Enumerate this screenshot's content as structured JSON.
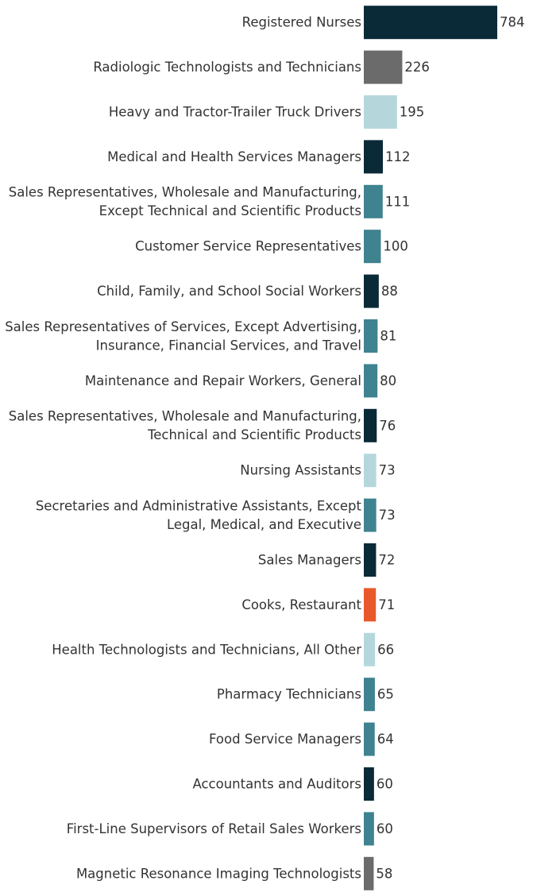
{
  "chart_data": {
    "type": "bar",
    "orientation": "horizontal",
    "title": "",
    "xlabel": "",
    "ylabel": "",
    "xlim": [
      0,
      784
    ],
    "grid": false,
    "categories": [
      [
        "Registered Nurses"
      ],
      [
        "Radiologic Technologists and Technicians"
      ],
      [
        "Heavy and Tractor-Trailer Truck Drivers"
      ],
      [
        "Medical and Health Services Managers"
      ],
      [
        "Sales Representatives, Wholesale and Manufacturing,",
        "Except Technical and Scientific Products"
      ],
      [
        "Customer Service Representatives"
      ],
      [
        "Child, Family, and School Social Workers"
      ],
      [
        "Sales Representatives of Services, Except Advertising,",
        "Insurance, Financial Services, and Travel"
      ],
      [
        "Maintenance and Repair Workers, General"
      ],
      [
        "Sales Representatives, Wholesale and Manufacturing,",
        "Technical and Scientific Products"
      ],
      [
        "Nursing Assistants"
      ],
      [
        "Secretaries and Administrative Assistants, Except",
        "Legal, Medical, and Executive"
      ],
      [
        "Sales Managers"
      ],
      [
        "Cooks, Restaurant"
      ],
      [
        "Health Technologists and Technicians, All Other"
      ],
      [
        "Pharmacy Technicians"
      ],
      [
        "Food Service Managers"
      ],
      [
        "Accountants and Auditors"
      ],
      [
        "First-Line Supervisors of Retail Sales Workers"
      ],
      [
        "Magnetic Resonance Imaging Technologists"
      ]
    ],
    "values": [
      784,
      226,
      195,
      112,
      111,
      100,
      88,
      81,
      80,
      76,
      73,
      73,
      72,
      71,
      66,
      65,
      64,
      60,
      60,
      58
    ],
    "colors": [
      "#0b2a38",
      "#6b6b6b",
      "#b5d7dc",
      "#0b2a38",
      "#3f8290",
      "#3f8290",
      "#0b2a38",
      "#3f8290",
      "#3f8290",
      "#0b2a38",
      "#b5d7dc",
      "#3f8290",
      "#0b2a38",
      "#e8582a",
      "#b5d7dc",
      "#3f8290",
      "#3f8290",
      "#0b2a38",
      "#3f8290",
      "#6b6b6b"
    ]
  }
}
